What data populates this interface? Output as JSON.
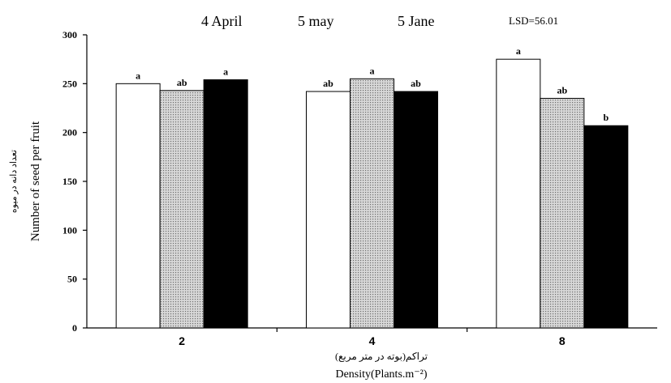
{
  "chart_data": {
    "type": "bar",
    "categories": [
      "2",
      "4",
      "8"
    ],
    "series": [
      {
        "name": "4 April",
        "fill": "white",
        "values": [
          250,
          242,
          275
        ],
        "letters": [
          "a",
          "ab",
          "a"
        ]
      },
      {
        "name": "5 may",
        "fill": "dotted-gray",
        "values": [
          243,
          255,
          235
        ],
        "letters": [
          "ab",
          "a",
          "ab"
        ]
      },
      {
        "name": "5 Jane",
        "fill": "black",
        "values": [
          254,
          242,
          207
        ],
        "letters": [
          "a",
          "ab",
          "b"
        ]
      }
    ],
    "ylim": [
      0,
      300
    ],
    "yticks": [
      "0",
      "50",
      "100",
      "150",
      "200",
      "250",
      "300"
    ],
    "ylabel": "Number of seed per fruit",
    "ylabel_alt": "تعداد دانه در میوه",
    "xlabel": "Density(Plants.m⁻²)",
    "xlabel_alt": "تراکم(بوته در متر مربع)",
    "annotation": "LSD=56.01",
    "legend_position": "top",
    "grid": false
  },
  "colors": {
    "axis": "#000000",
    "bar_stroke": "#000000",
    "bar_black": "#000000",
    "bar_white": "#ffffff",
    "pattern_bg": "#d8d8d8",
    "pattern_dot": "#6e6e6e"
  }
}
